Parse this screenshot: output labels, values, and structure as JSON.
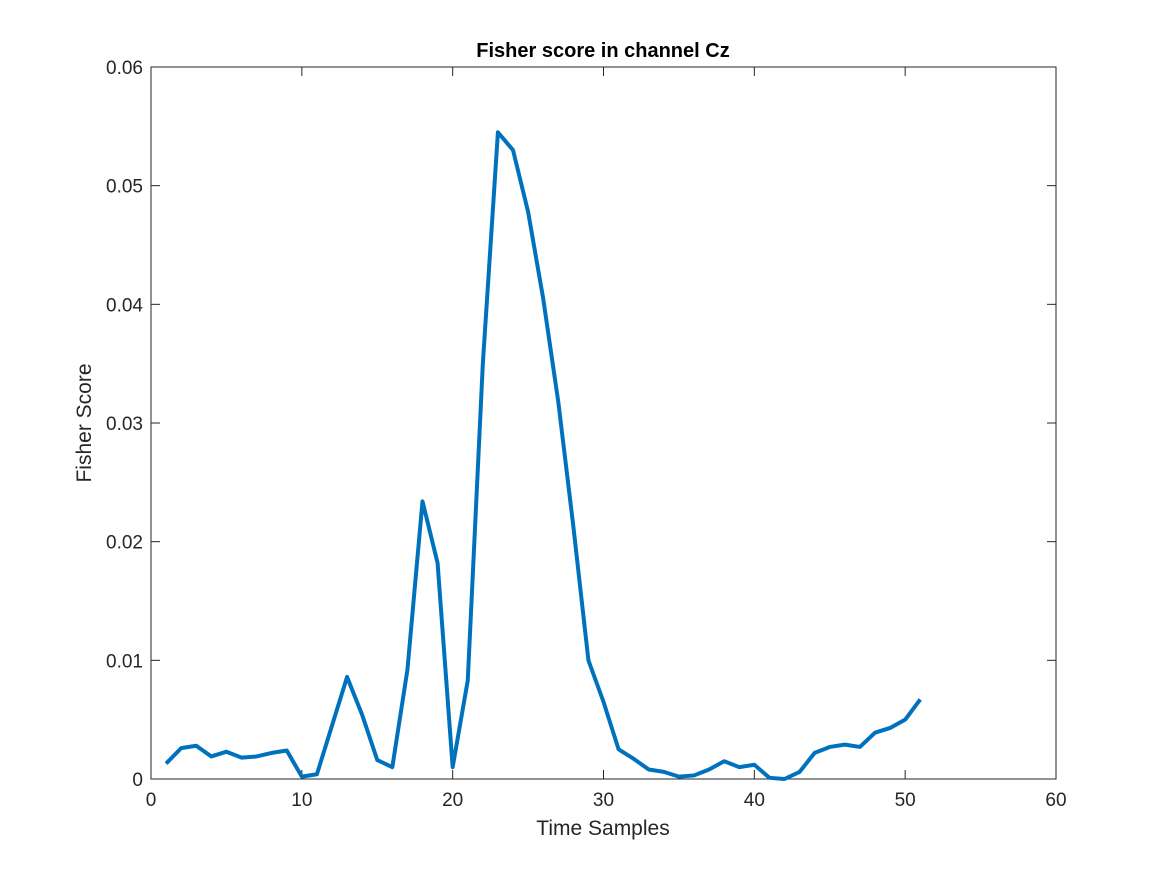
{
  "chart_data": {
    "type": "line",
    "title": "Fisher score in channel Cz",
    "xlabel": "Time Samples",
    "ylabel": "Fisher Score",
    "xlim": [
      0,
      60
    ],
    "ylim": [
      0,
      0.06
    ],
    "xticks": [
      0,
      10,
      20,
      30,
      40,
      50,
      60
    ],
    "yticks": [
      0,
      0.01,
      0.02,
      0.03,
      0.04,
      0.05,
      0.06
    ],
    "xtick_labels": [
      "0",
      "10",
      "20",
      "30",
      "40",
      "50",
      "60"
    ],
    "ytick_labels": [
      "0",
      "0.01",
      "0.02",
      "0.03",
      "0.04",
      "0.05",
      "0.06"
    ],
    "grid": false,
    "line_color": "#0072BD",
    "series": [
      {
        "x": [
          1,
          2,
          3,
          4,
          5,
          6,
          7,
          8,
          9,
          10,
          11,
          12,
          13,
          14,
          15,
          16,
          17,
          18,
          19,
          20,
          21,
          22,
          23,
          24,
          25,
          26,
          27,
          28,
          29,
          30,
          31,
          32,
          33,
          34,
          35,
          36,
          37,
          38,
          39,
          40,
          41,
          42,
          43,
          44,
          45,
          46,
          47,
          48,
          49,
          50,
          51
        ],
        "values": [
          0.0013,
          0.0026,
          0.0028,
          0.0019,
          0.0023,
          0.0018,
          0.0019,
          0.0022,
          0.0024,
          0.0002,
          0.0004,
          0.0045,
          0.0086,
          0.0054,
          0.0016,
          0.001,
          0.0092,
          0.0234,
          0.0182,
          0.001,
          0.0083,
          0.035,
          0.0545,
          0.053,
          0.0478,
          0.0405,
          0.0318,
          0.0213,
          0.01,
          0.0065,
          0.0025,
          0.0017,
          0.0008,
          0.0006,
          0.0002,
          0.0003,
          0.0008,
          0.0015,
          0.001,
          0.0012,
          0.0001,
          0.0,
          0.0006,
          0.0022,
          0.0027,
          0.0029,
          0.0027,
          0.0039,
          0.0043,
          0.005,
          0.0067
        ]
      }
    ]
  }
}
